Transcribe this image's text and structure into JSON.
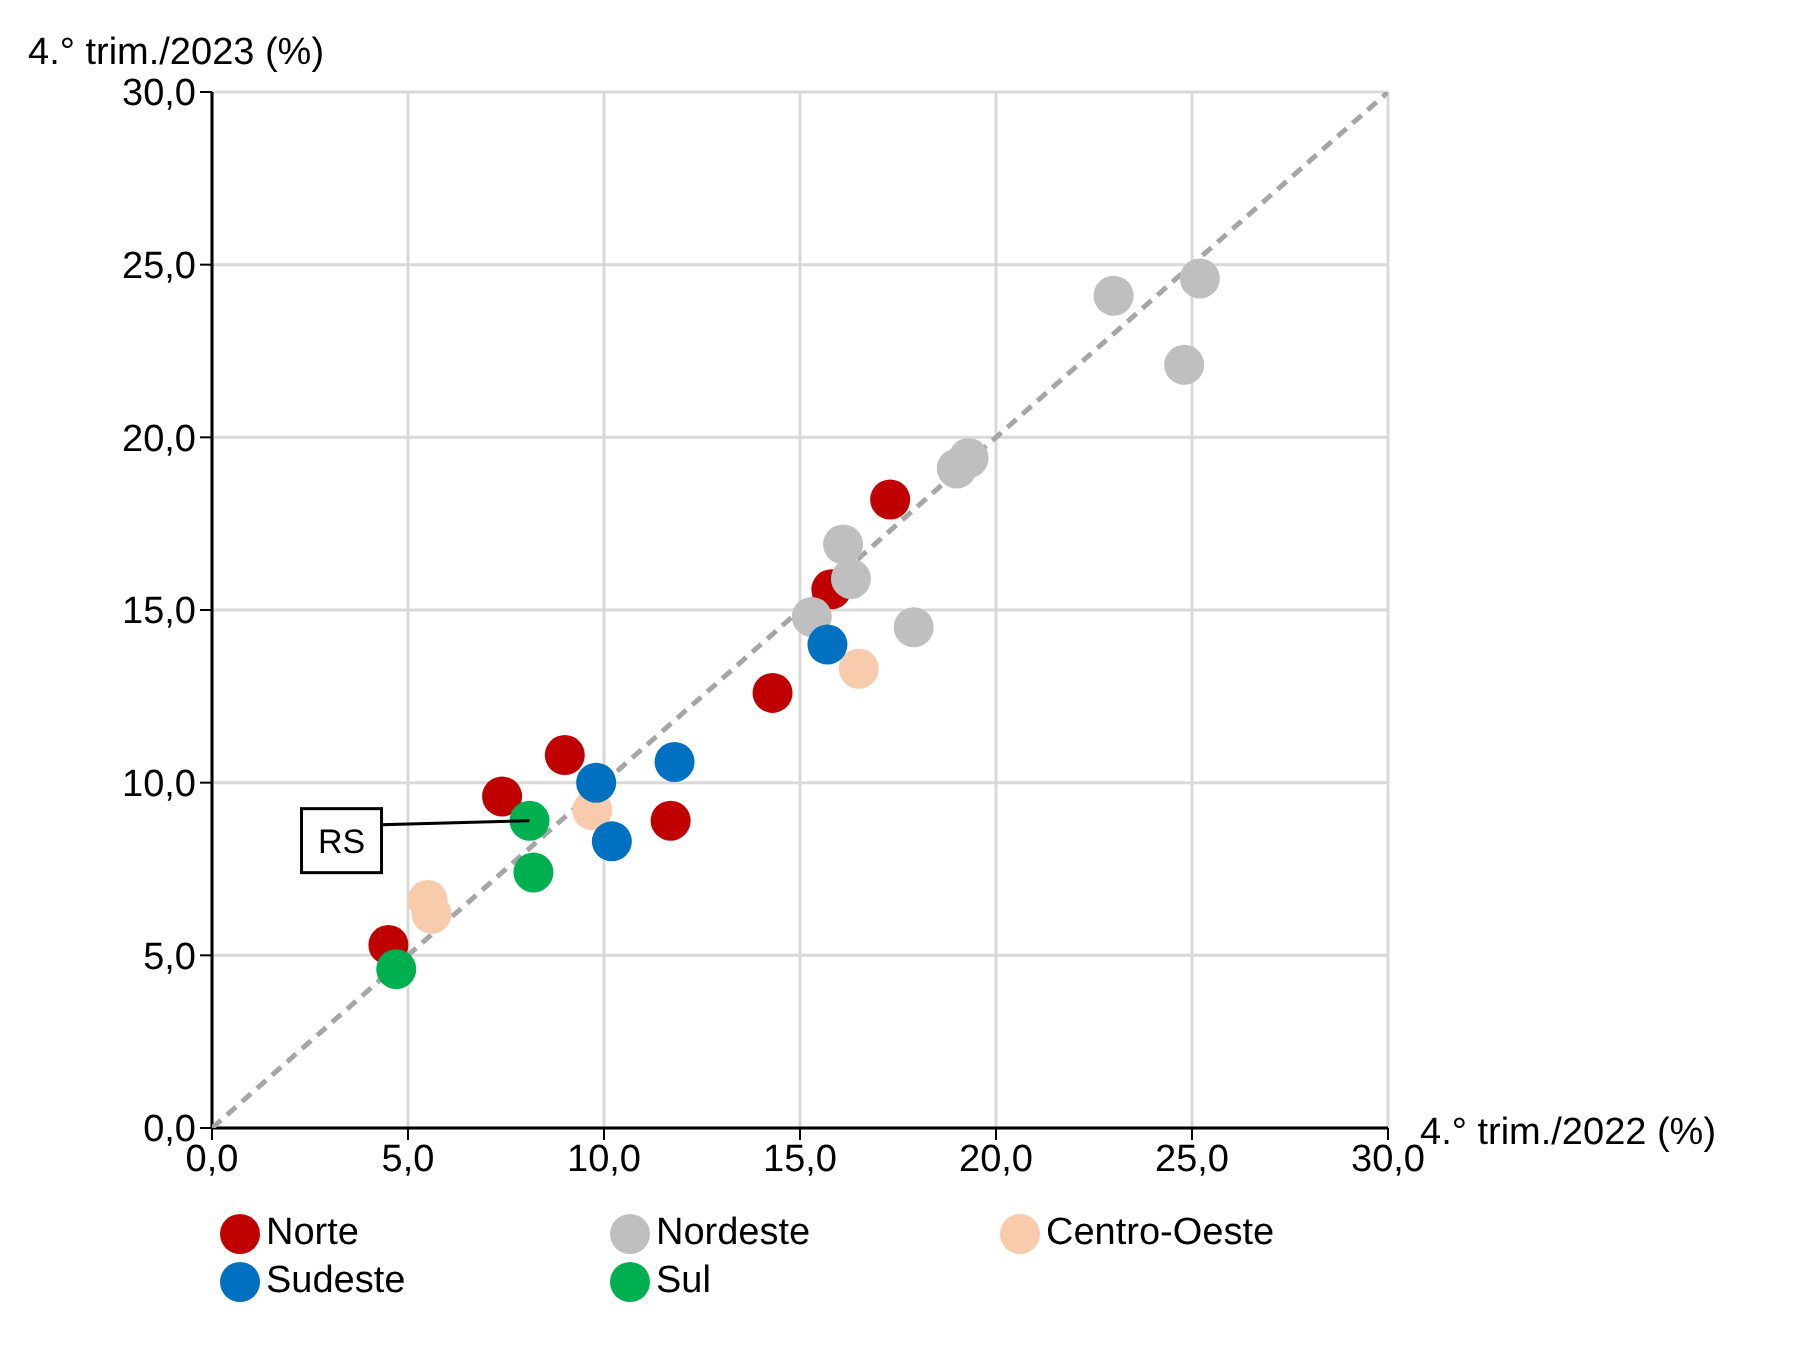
{
  "chart_data": {
    "type": "scatter",
    "xlabel": "4.° trim./2022 (%)",
    "ylabel": "4.° trim./2023 (%)",
    "xlim": [
      0,
      30
    ],
    "ylim": [
      0,
      30
    ],
    "xticks": [
      {
        "value": 0,
        "label": "0,0"
      },
      {
        "value": 5,
        "label": "5,0"
      },
      {
        "value": 10,
        "label": "10,0"
      },
      {
        "value": 15,
        "label": "15,0"
      },
      {
        "value": 20,
        "label": "20,0"
      },
      {
        "value": 25,
        "label": "25,0"
      },
      {
        "value": 30,
        "label": "30,0"
      }
    ],
    "yticks": [
      {
        "value": 0,
        "label": "0,0"
      },
      {
        "value": 5,
        "label": "5,0"
      },
      {
        "value": 10,
        "label": "10,0"
      },
      {
        "value": 15,
        "label": "15,0"
      },
      {
        "value": 20,
        "label": "20,0"
      },
      {
        "value": 25,
        "label": "25,0"
      },
      {
        "value": 30,
        "label": "30,0"
      }
    ],
    "grid": true,
    "legend": "bottom",
    "marker": "circle",
    "series": [
      {
        "type": "line",
        "color": "#a6a6a6",
        "line_style": "dashed",
        "marker": "none",
        "x": [
          0,
          30
        ],
        "values": [
          0,
          30
        ]
      },
      {
        "name": "Norte",
        "color": "#c00000",
        "x": [
          4.5,
          7.4,
          9.0,
          11.7,
          14.3,
          15.8,
          17.3
        ],
        "values": [
          5.3,
          9.6,
          10.8,
          8.9,
          12.6,
          15.6,
          18.2
        ]
      },
      {
        "name": "Nordeste",
        "color": "#bfbfbf",
        "x": [
          23.0,
          25.2,
          24.8,
          19.0,
          19.3,
          16.1,
          16.3,
          15.3,
          17.9
        ],
        "values": [
          24.1,
          24.6,
          22.1,
          19.1,
          19.4,
          16.9,
          15.9,
          14.8,
          14.5
        ]
      },
      {
        "name": "Centro-Oeste",
        "color": "#f8cbad",
        "x": [
          5.5,
          5.6,
          9.7,
          16.5
        ],
        "values": [
          6.6,
          6.2,
          9.2,
          13.3
        ]
      },
      {
        "name": "Sudeste",
        "color": "#0070c0",
        "x": [
          9.8,
          10.2,
          11.8,
          15.7
        ],
        "values": [
          10.0,
          8.3,
          10.6,
          14.0
        ]
      },
      {
        "name": "Sul",
        "color": "#00b050",
        "x": [
          4.7,
          8.1,
          8.2
        ],
        "values": [
          4.6,
          8.9,
          7.4
        ]
      }
    ],
    "annotations": [
      {
        "text": "RS",
        "x": 8.1,
        "y": 8.9
      }
    ]
  }
}
